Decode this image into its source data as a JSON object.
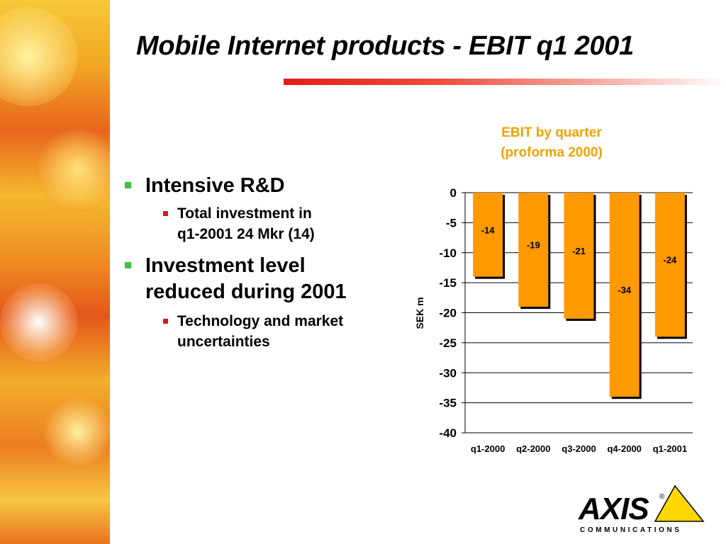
{
  "slide": {
    "title": "Mobile Internet products - EBIT q1 2001",
    "bullets": [
      {
        "text": "Intensive R&D",
        "sub": [
          "Total investment in",
          "q1-2001 24 Mkr (14)"
        ]
      },
      {
        "text": [
          "Investment level",
          "reduced during 2001"
        ],
        "sub": [
          "Technology and market",
          "uncertainties"
        ]
      }
    ],
    "logo": {
      "wordmark": "AXIS",
      "registered": "®",
      "tagline": "COMMUNICATIONS"
    }
  },
  "colors": {
    "bar": "#ff9900",
    "title_rule": "#e51b1b",
    "chart_title": "#f0a200",
    "bullet_l1": "#3fbf3f",
    "bullet_l2": "#d41b1b",
    "logo_triangle": "#ffd700"
  },
  "chart_data": {
    "type": "bar",
    "title": [
      "EBIT by quarter",
      "(proforma 2000)"
    ],
    "categories": [
      "q1-2000",
      "q2-2000",
      "q3-2000",
      "q4-2000",
      "q1-2001"
    ],
    "values": [
      -14,
      -19,
      -21,
      -34,
      -24
    ],
    "data_labels": [
      "-14",
      "-19",
      "-21",
      "-34",
      "-24"
    ],
    "ylabel": "SEK m",
    "ylim": [
      -40,
      0
    ],
    "yticks": [
      "0",
      "-5",
      "-10",
      "-15",
      "-20",
      "-25",
      "-30",
      "-35",
      "-40"
    ],
    "grid": true,
    "legend": false
  }
}
